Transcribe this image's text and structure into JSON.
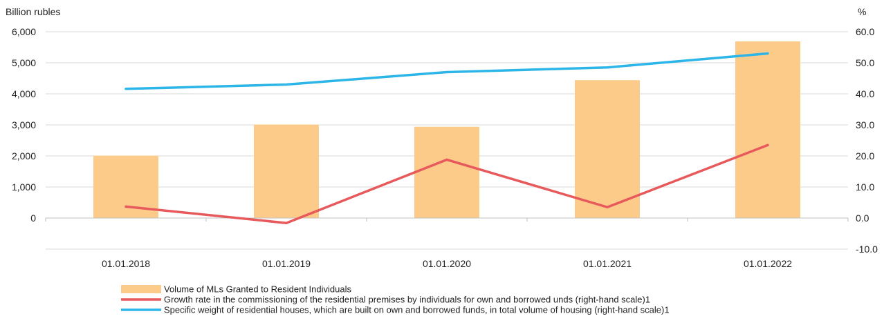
{
  "chart_data": {
    "type": "bar",
    "categories": [
      "01.01.2018",
      "01.01.2019",
      "01.01.2020",
      "01.01.2021",
      "01.01.2022"
    ],
    "left_axis": {
      "label": "Billion rubles",
      "min": -2000,
      "max": 6000,
      "tick_values": [
        0,
        1000,
        2000,
        3000,
        4000,
        5000,
        6000
      ],
      "tick_labels": [
        "0",
        "1,000",
        "2,000",
        "3,000",
        "4,000",
        "5,000",
        "6,000"
      ]
    },
    "right_axis": {
      "label": "%",
      "min": -10,
      "max": 60,
      "tick_values": [
        -10,
        0,
        10,
        20,
        30,
        40,
        50,
        60
      ],
      "tick_labels": [
        "-10.0",
        "0.0",
        "10.0",
        "20.0",
        "30.0",
        "40.0",
        "50.0",
        "60.0"
      ]
    },
    "grid": true,
    "legend_position": "bottom",
    "series": [
      {
        "name": "Volume of MLs Granted to Resident Individuals",
        "type": "bar",
        "axis": "left",
        "color": "#FCCB8A",
        "values": [
          2010,
          3010,
          2940,
          4440,
          5690
        ]
      },
      {
        "name": "Growth rate in the commissioning of the residential premises by individuals for own and borrowed unds (right-hand scale)1",
        "type": "line",
        "axis": "right",
        "color": "#E8595C",
        "values": [
          3.7,
          -1.6,
          18.8,
          3.5,
          23.5
        ]
      },
      {
        "name": "Specific weight of residential houses, which are built on own and borrowed funds, in total volume of housing (right-hand scale)1",
        "type": "line",
        "axis": "right",
        "color": "#2BB5E8",
        "values": [
          41.6,
          43.0,
          47.0,
          48.5,
          53.0
        ]
      }
    ]
  }
}
